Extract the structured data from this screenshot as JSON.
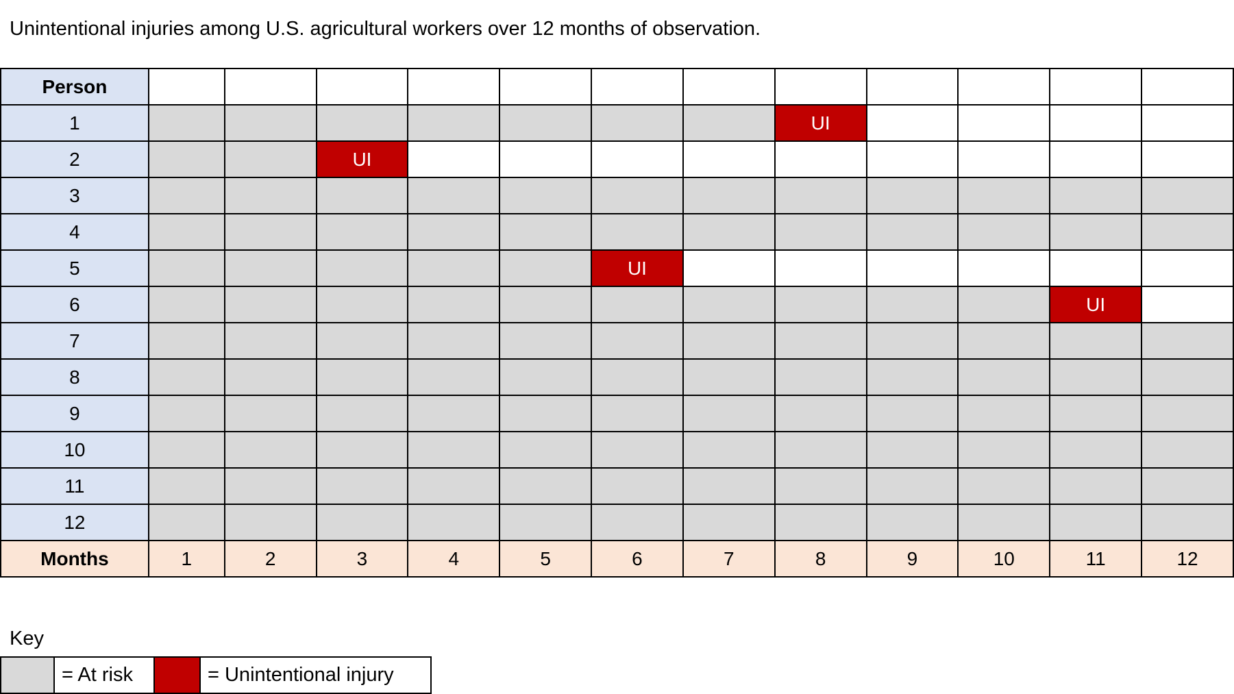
{
  "title": "Unintentional injuries among U.S. agricultural workers over 12 months of observation.",
  "person_header": "Person",
  "months_header": "Months",
  "months": [
    "1",
    "2",
    "3",
    "4",
    "5",
    "6",
    "7",
    "8",
    "9",
    "10",
    "11",
    "12"
  ],
  "injury_label": "UI",
  "colors": {
    "at_risk": "#d9d9d9",
    "injury": "#c00000",
    "person_bg": "#dae3f3",
    "months_bg": "#fbe5d6"
  },
  "persons": [
    {
      "label": "1",
      "injury_month": 8
    },
    {
      "label": "2",
      "injury_month": 3
    },
    {
      "label": "3",
      "injury_month": null
    },
    {
      "label": "4",
      "injury_month": null
    },
    {
      "label": "5",
      "injury_month": 6
    },
    {
      "label": "6",
      "injury_month": 11
    },
    {
      "label": "7",
      "injury_month": null
    },
    {
      "label": "8",
      "injury_month": null
    },
    {
      "label": "9",
      "injury_month": null
    },
    {
      "label": "10",
      "injury_month": null
    },
    {
      "label": "11",
      "injury_month": null
    },
    {
      "label": "12",
      "injury_month": null
    }
  ],
  "key": {
    "title": "Key",
    "at_risk_label": "= At risk",
    "injury_label": "= Unintentional injury"
  }
}
